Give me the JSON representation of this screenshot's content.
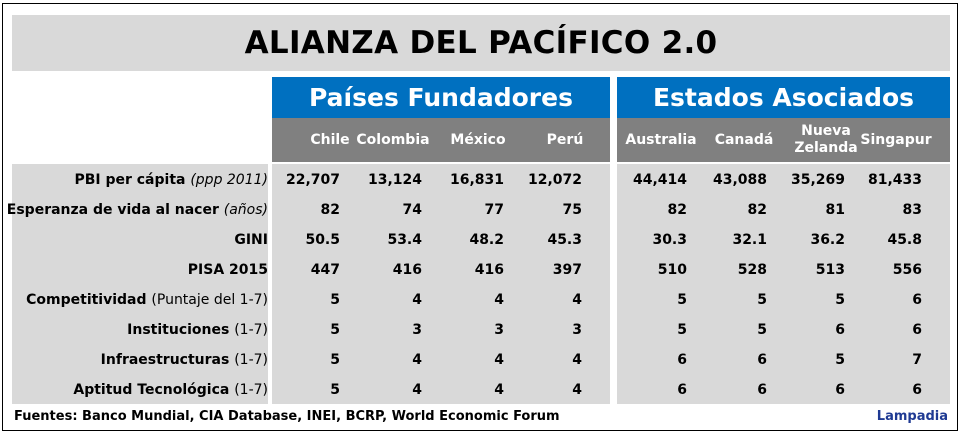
{
  "title": "ALIANZA DEL PACÍFICO 2.0",
  "groups": {
    "fundadores": "Países Fundadores",
    "asociados": "Estados Asociados"
  },
  "columns": [
    "Chile",
    "Colombia",
    "México",
    "Perú",
    "Australia",
    "Canadá",
    "Nueva Zelanda",
    "Singapur"
  ],
  "column_lines": {
    "nueva_zelanda": [
      "Nueva",
      "Zelanda"
    ]
  },
  "rows": [
    {
      "label": "PBI per cápita",
      "note": "(ppp 2011)",
      "note_italic": true,
      "values": [
        "22,707",
        "13,124",
        "16,831",
        "12,072",
        "44,414",
        "43,088",
        "35,269",
        "81,433"
      ]
    },
    {
      "label": "Esperanza de vida al nacer",
      "note": "(años)",
      "note_italic": true,
      "values": [
        "82",
        "74",
        "77",
        "75",
        "82",
        "82",
        "81",
        "83"
      ]
    },
    {
      "label": "GINI",
      "note": "",
      "note_italic": false,
      "values": [
        "50.5",
        "53.4",
        "48.2",
        "45.3",
        "30.3",
        "32.1",
        "36.2",
        "45.8"
      ]
    },
    {
      "label": "PISA 2015",
      "note": "",
      "note_italic": false,
      "values": [
        "447",
        "416",
        "416",
        "397",
        "510",
        "528",
        "513",
        "556"
      ]
    },
    {
      "label": "Competitividad",
      "note": "(Puntaje del 1-7)",
      "note_italic": false,
      "values": [
        "5",
        "4",
        "4",
        "4",
        "5",
        "5",
        "5",
        "6"
      ]
    },
    {
      "label": "Instituciones",
      "note": "(1-7)",
      "note_italic": false,
      "values": [
        "5",
        "3",
        "3",
        "3",
        "5",
        "5",
        "6",
        "6"
      ]
    },
    {
      "label": "Infraestructuras",
      "note": "(1-7)",
      "note_italic": false,
      "values": [
        "5",
        "4",
        "4",
        "4",
        "6",
        "6",
        "5",
        "7"
      ]
    },
    {
      "label": "Aptitud Tecnológica",
      "note": "(1-7)",
      "note_italic": false,
      "values": [
        "5",
        "4",
        "4",
        "4",
        "6",
        "6",
        "6",
        "6"
      ]
    }
  ],
  "footer": {
    "sources": "Fuentes: Banco Mundial, CIA Database, INEI, BCRP, World Economic Forum",
    "brand": "Lampadia"
  },
  "colors": {
    "band_blue": "#0070c0",
    "subheader_grey": "#808080",
    "cell_grey": "#d9d9d9",
    "brand_blue": "#1f3a93"
  }
}
